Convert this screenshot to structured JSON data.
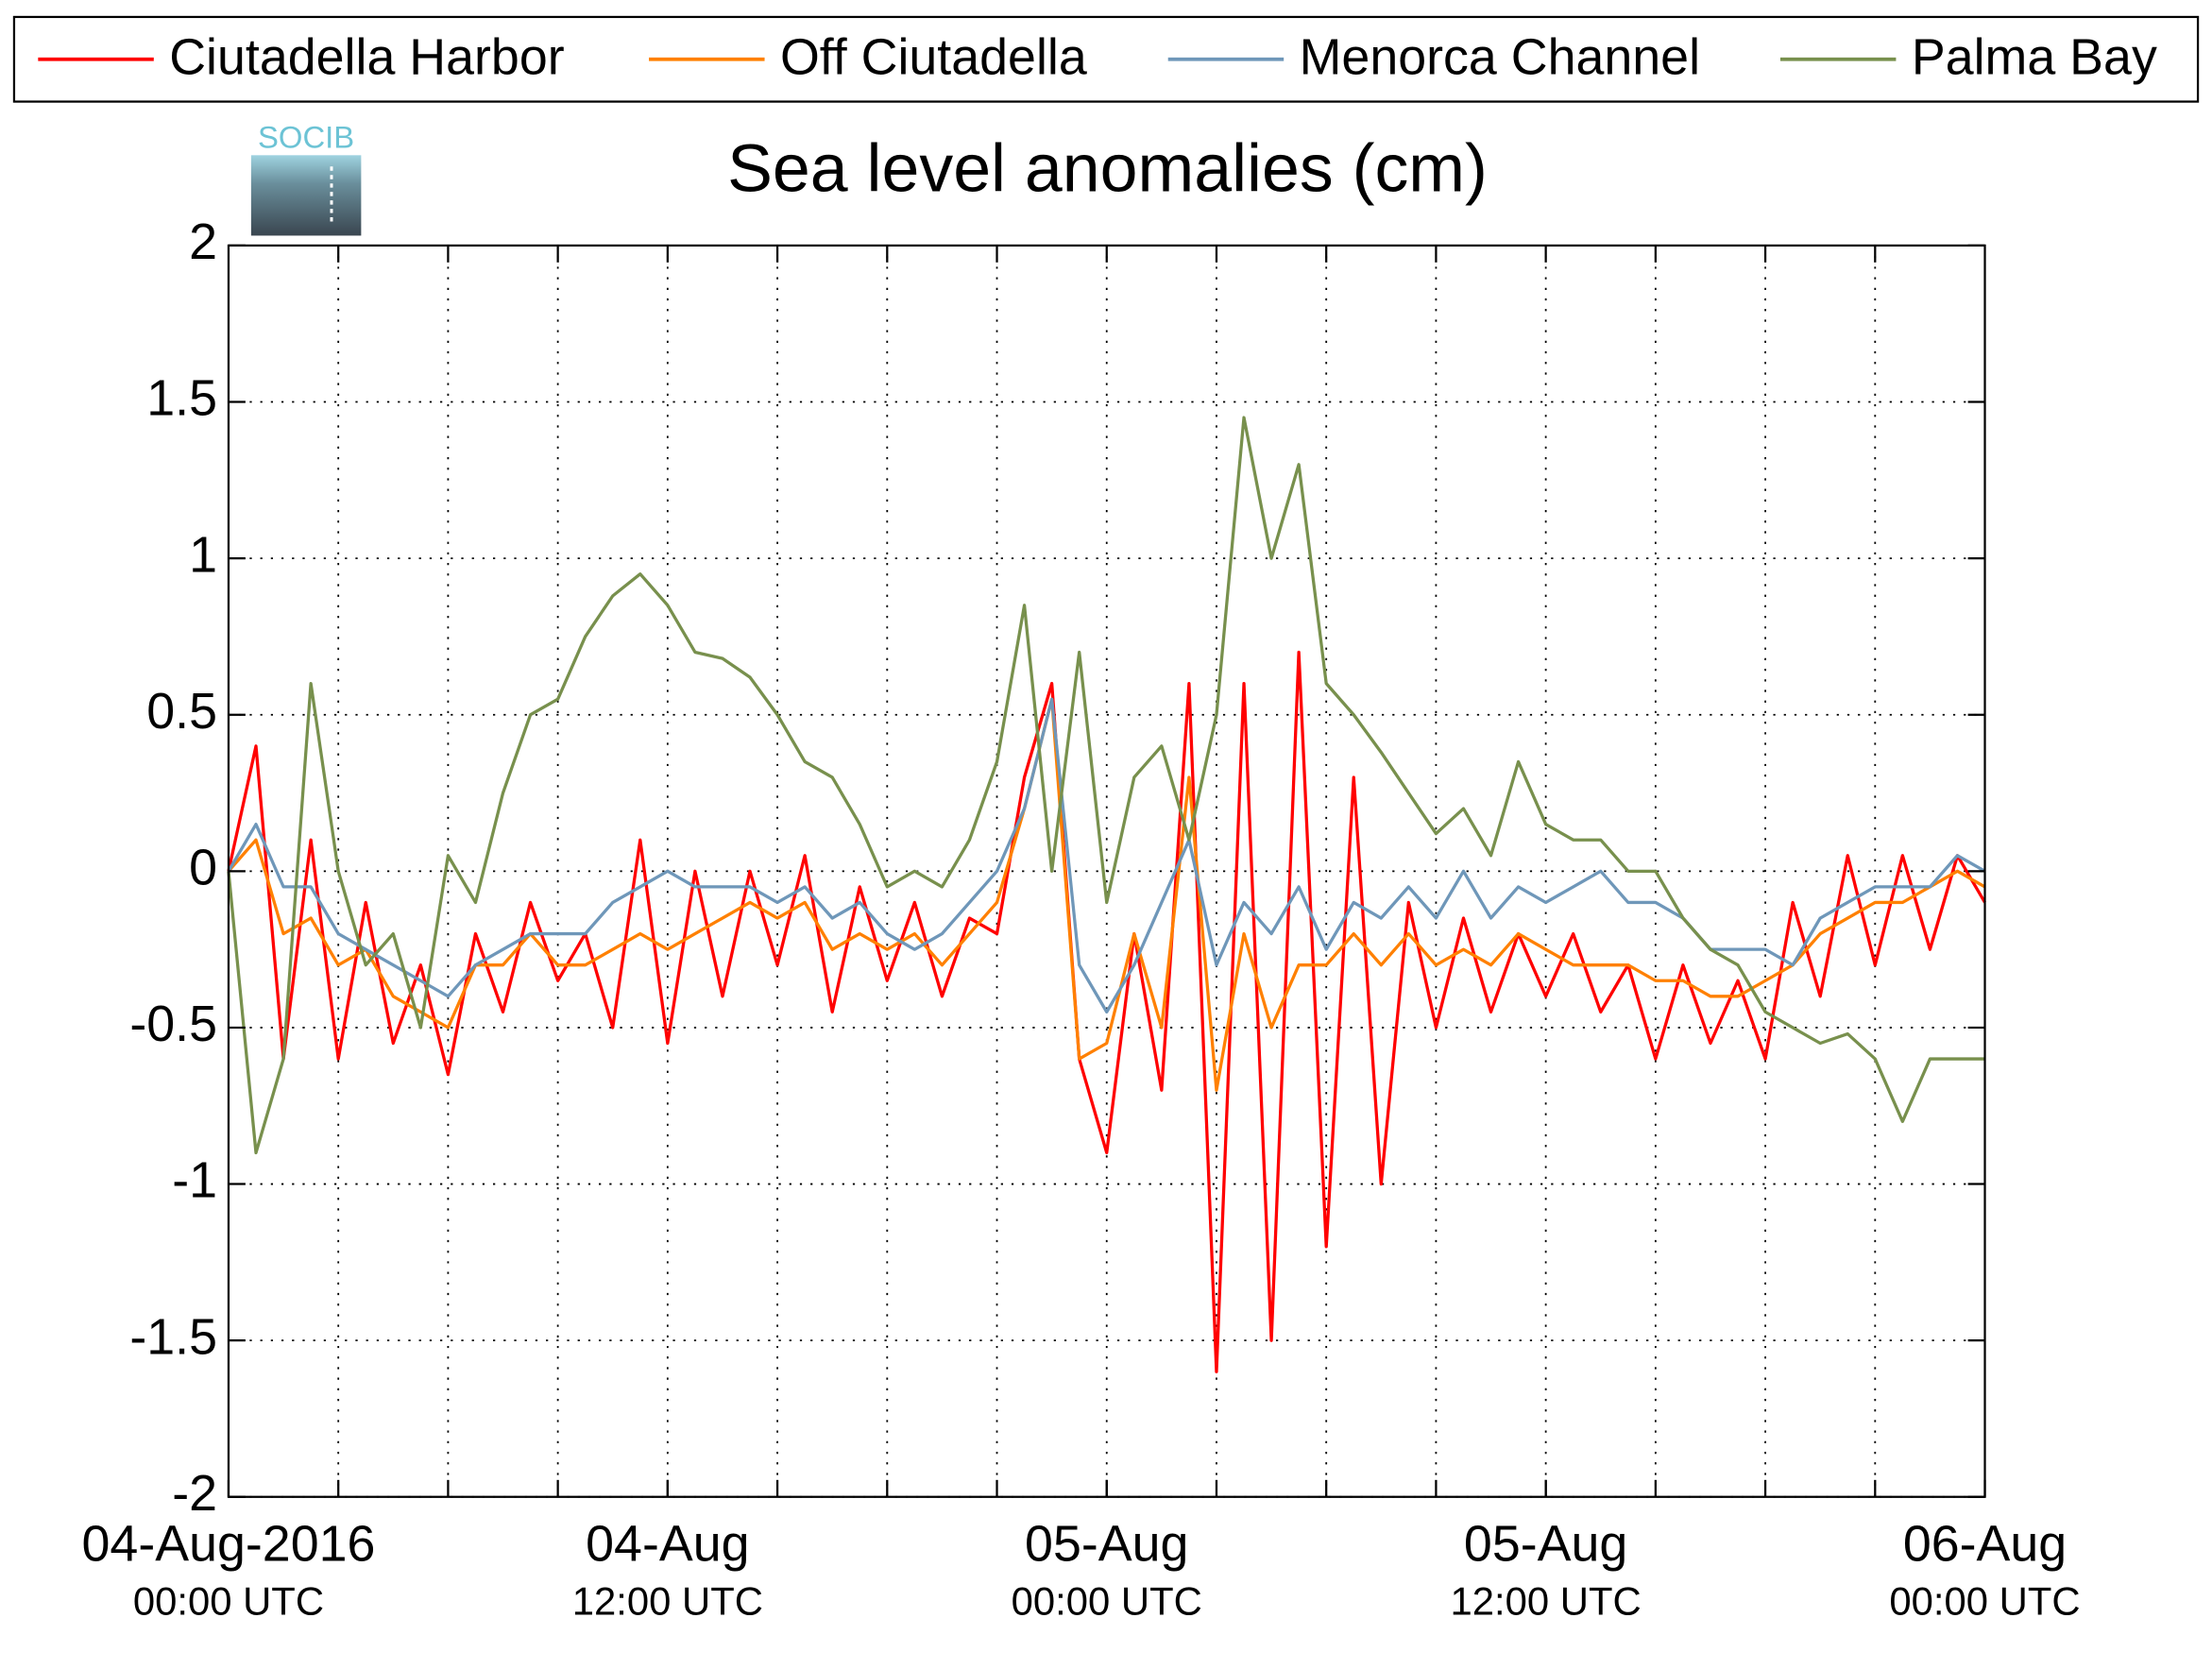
{
  "chart_data": {
    "type": "line",
    "title": "Sea level anomalies (cm)",
    "logo": "SOCIB",
    "legend": "top",
    "grid": true,
    "xlim": [
      0,
      48
    ],
    "xticks": [
      {
        "value": 0,
        "label": "04-Aug-2016",
        "sublabel": "00:00 UTC"
      },
      {
        "value": 12,
        "label": "04-Aug",
        "sublabel": "12:00 UTC"
      },
      {
        "value": 24,
        "label": "05-Aug",
        "sublabel": "00:00 UTC"
      },
      {
        "value": 36,
        "label": "05-Aug",
        "sublabel": "12:00 UTC"
      },
      {
        "value": 48,
        "label": "06-Aug",
        "sublabel": "00:00 UTC"
      }
    ],
    "xminor_ticks": [
      3,
      6,
      9,
      12,
      15,
      18,
      21,
      24,
      27,
      30,
      33,
      36,
      39,
      42,
      45
    ],
    "ylim": [
      -2,
      2
    ],
    "yticks": [
      -2,
      -1.5,
      -1,
      -0.5,
      0,
      0.5,
      1,
      1.5,
      2
    ],
    "x": [
      0,
      0.75,
      1.5,
      2.25,
      3,
      3.75,
      4.5,
      5.25,
      6,
      6.75,
      7.5,
      8.25,
      9,
      9.75,
      10.5,
      11.25,
      12,
      12.75,
      13.5,
      14.25,
      15,
      15.75,
      16.5,
      17.25,
      18,
      18.75,
      19.5,
      20.25,
      21,
      21.75,
      22.5,
      23.25,
      24,
      24.75,
      25.5,
      26.25,
      27,
      27.75,
      28.5,
      29.25,
      30,
      30.75,
      31.5,
      32.25,
      33,
      33.75,
      34.5,
      35.25,
      36,
      36.75,
      37.5,
      38.25,
      39,
      39.75,
      40.5,
      41.25,
      42,
      42.75,
      43.5,
      44.25,
      45,
      45.75,
      46.5,
      47.25,
      48
    ],
    "series": [
      {
        "name": "Ciutadella Harbor",
        "color": "#ff0000",
        "values": [
          0,
          0.4,
          -0.6,
          0.1,
          -0.6,
          -0.1,
          -0.55,
          -0.3,
          -0.65,
          -0.2,
          -0.45,
          -0.1,
          -0.35,
          -0.2,
          -0.5,
          0.1,
          -0.55,
          0.0,
          -0.4,
          0.0,
          -0.3,
          0.05,
          -0.45,
          -0.05,
          -0.35,
          -0.1,
          -0.4,
          -0.15,
          -0.2,
          0.3,
          0.6,
          -0.6,
          -0.9,
          -0.2,
          -0.7,
          0.6,
          -1.6,
          0.6,
          -1.5,
          0.7,
          -1.2,
          0.3,
          -1.0,
          -0.1,
          -0.5,
          -0.15,
          -0.45,
          -0.2,
          -0.4,
          -0.2,
          -0.45,
          -0.3,
          -0.6,
          -0.3,
          -0.55,
          -0.35,
          -0.6,
          -0.1,
          -0.4,
          0.05,
          -0.3,
          0.05,
          -0.25,
          0.05,
          -0.1
        ]
      },
      {
        "name": "Off Ciutadella",
        "color": "#ff8000",
        "values": [
          0,
          0.1,
          -0.2,
          -0.15,
          -0.3,
          -0.25,
          -0.4,
          -0.45,
          -0.5,
          -0.3,
          -0.3,
          -0.2,
          -0.3,
          -0.3,
          -0.25,
          -0.2,
          -0.25,
          -0.2,
          -0.15,
          -0.1,
          -0.15,
          -0.1,
          -0.25,
          -0.2,
          -0.25,
          -0.2,
          -0.3,
          -0.2,
          -0.1,
          0.2,
          0.55,
          -0.6,
          -0.55,
          -0.2,
          -0.5,
          0.3,
          -0.7,
          -0.2,
          -0.5,
          -0.3,
          -0.3,
          -0.2,
          -0.3,
          -0.2,
          -0.3,
          -0.25,
          -0.3,
          -0.2,
          -0.25,
          -0.3,
          -0.3,
          -0.3,
          -0.35,
          -0.35,
          -0.4,
          -0.4,
          -0.35,
          -0.3,
          -0.2,
          -0.15,
          -0.1,
          -0.1,
          -0.05,
          0.0,
          -0.05
        ]
      },
      {
        "name": "Menorca Channel",
        "color": "#6f97b9",
        "values": [
          0,
          0.15,
          -0.05,
          -0.05,
          -0.2,
          -0.25,
          -0.3,
          -0.35,
          -0.4,
          -0.3,
          -0.25,
          -0.2,
          -0.2,
          -0.2,
          -0.1,
          -0.05,
          0.0,
          -0.05,
          -0.05,
          -0.05,
          -0.1,
          -0.05,
          -0.15,
          -0.1,
          -0.2,
          -0.25,
          -0.2,
          -0.1,
          0.0,
          0.2,
          0.55,
          -0.3,
          -0.45,
          -0.3,
          -0.1,
          0.1,
          -0.3,
          -0.1,
          -0.2,
          -0.05,
          -0.25,
          -0.1,
          -0.15,
          -0.05,
          -0.15,
          0.0,
          -0.15,
          -0.05,
          -0.1,
          -0.05,
          0.0,
          -0.1,
          -0.1,
          -0.15,
          -0.25,
          -0.25,
          -0.25,
          -0.3,
          -0.15,
          -0.1,
          -0.05,
          -0.05,
          -0.05,
          0.05,
          0.0
        ]
      },
      {
        "name": "Palma Bay",
        "color": "#78904d",
        "values": [
          0,
          -0.9,
          -0.6,
          0.6,
          0.0,
          -0.3,
          -0.2,
          -0.5,
          0.05,
          -0.1,
          0.25,
          0.5,
          0.55,
          0.75,
          0.88,
          0.95,
          0.85,
          0.7,
          0.68,
          0.62,
          0.5,
          0.35,
          0.3,
          0.15,
          -0.05,
          0.0,
          -0.05,
          0.1,
          0.35,
          0.85,
          0.0,
          0.7,
          -0.1,
          0.3,
          0.4,
          0.1,
          0.5,
          1.45,
          1.0,
          1.3,
          0.6,
          0.5,
          0.38,
          0.25,
          0.12,
          0.2,
          0.05,
          0.35,
          0.15,
          0.1,
          0.1,
          0.0,
          0.0,
          -0.15,
          -0.25,
          -0.3,
          -0.45,
          -0.5,
          -0.55,
          -0.52,
          -0.6,
          -0.8,
          -0.6,
          -0.6,
          -0.6
        ]
      }
    ]
  }
}
